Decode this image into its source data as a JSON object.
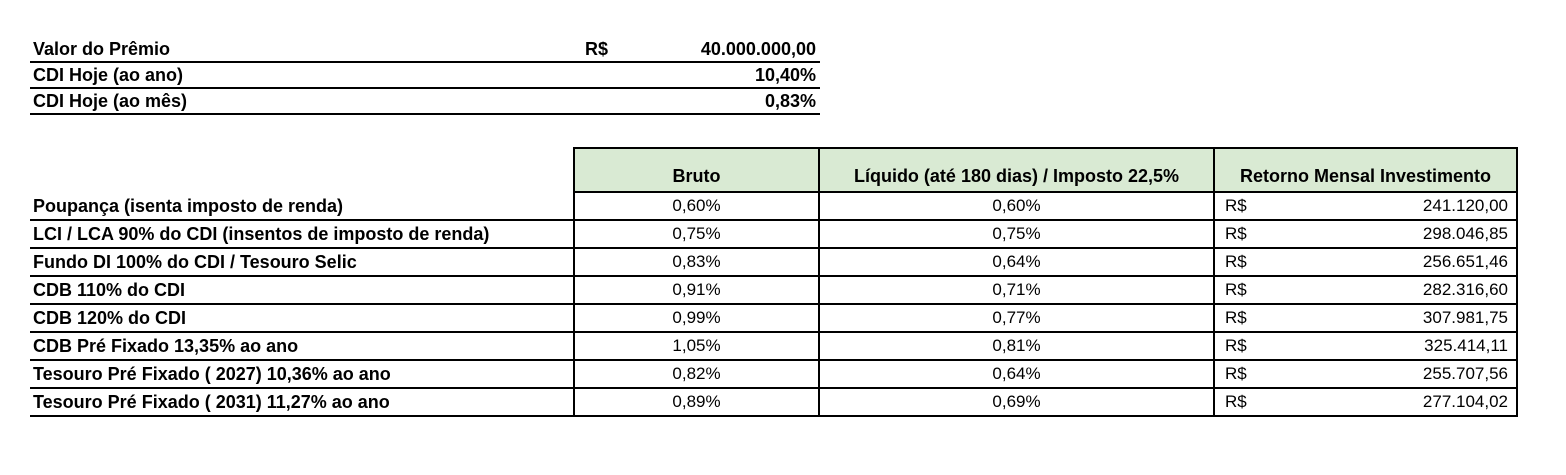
{
  "meta": {
    "background_color": "#ffffff",
    "header_bg_color": "#d9ead3",
    "border_color": "#000000",
    "text_color": "#000000"
  },
  "summary": {
    "rows": [
      {
        "label": "Valor do Prêmio",
        "currency": "R$",
        "value": "40.000.000,00"
      },
      {
        "label": "CDI Hoje (ao ano)",
        "currency": "",
        "value": "10,40%"
      },
      {
        "label": "CDI Hoje (ao mês)",
        "currency": "",
        "value": "0,83%"
      }
    ]
  },
  "table": {
    "columns": [
      "Bruto",
      "Líquido (até 180 dias) / Imposto 22,5%",
      "Retorno Mensal Investimento"
    ],
    "rows": [
      {
        "label": "Poupança (isenta imposto de renda)",
        "bruto": "0,60%",
        "liquido": "0,60%",
        "currency": "R$",
        "retorno": "241.120,00"
      },
      {
        "label": "LCI / LCA 90% do CDI (insentos de imposto de renda)",
        "bruto": "0,75%",
        "liquido": "0,75%",
        "currency": "R$",
        "retorno": "298.046,85"
      },
      {
        "label": "Fundo DI 100% do CDI / Tesouro Selic",
        "bruto": "0,83%",
        "liquido": "0,64%",
        "currency": "R$",
        "retorno": "256.651,46"
      },
      {
        "label": "CDB 110% do CDI",
        "bruto": "0,91%",
        "liquido": "0,71%",
        "currency": "R$",
        "retorno": "282.316,60"
      },
      {
        "label": "CDB 120% do CDI",
        "bruto": "0,99%",
        "liquido": "0,77%",
        "currency": "R$",
        "retorno": "307.981,75"
      },
      {
        "label": "CDB Pré Fixado 13,35% ao ano",
        "bruto": "1,05%",
        "liquido": "0,81%",
        "currency": "R$",
        "retorno": "325.414,11"
      },
      {
        "label": "Tesouro Pré Fixado ( 2027) 10,36% ao ano",
        "bruto": "0,82%",
        "liquido": "0,64%",
        "currency": "R$",
        "retorno": "255.707,56"
      },
      {
        "label": "Tesouro Pré Fixado ( 2031) 11,27% ao ano",
        "bruto": "0,89%",
        "liquido": "0,69%",
        "currency": "R$",
        "retorno": "277.104,02"
      }
    ]
  }
}
